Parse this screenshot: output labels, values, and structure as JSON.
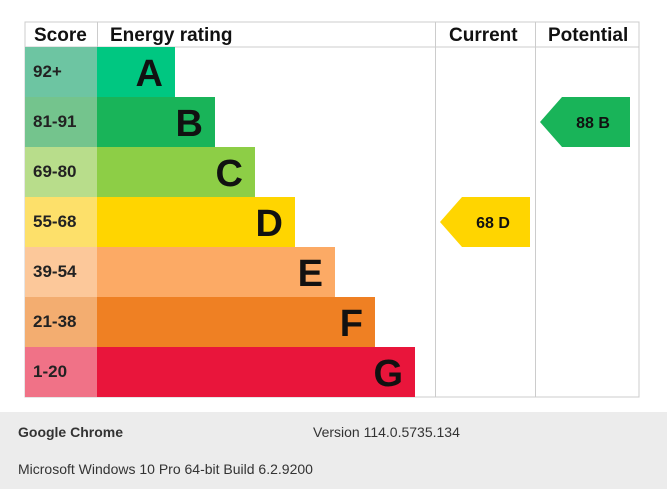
{
  "chart_data": {
    "type": "table",
    "headers": {
      "score": "Score",
      "energy_rating": "Energy rating",
      "current": "Current",
      "potential": "Potential"
    },
    "bands": [
      {
        "letter": "A",
        "range": "92+",
        "color": "#00c781",
        "score_bg": "#6dc5a2"
      },
      {
        "letter": "B",
        "range": "81-91",
        "color": "#19b459",
        "score_bg": "#74c48d"
      },
      {
        "letter": "C",
        "range": "69-80",
        "color": "#8dce46",
        "score_bg": "#b8dd8b"
      },
      {
        "letter": "D",
        "range": "55-68",
        "color": "#ffd500",
        "score_bg": "#fde06a"
      },
      {
        "letter": "E",
        "range": "39-54",
        "color": "#fcaa65",
        "score_bg": "#fcc89a"
      },
      {
        "letter": "F",
        "range": "21-38",
        "color": "#ef8023",
        "score_bg": "#f3ad70"
      },
      {
        "letter": "G",
        "range": "1-20",
        "color": "#e9153b",
        "score_bg": "#f07287"
      }
    ],
    "current": {
      "value": 68,
      "band": "D",
      "label": "68  D",
      "color": "#ffd500"
    },
    "potential": {
      "value": 88,
      "band": "B",
      "label": "88  B",
      "color": "#19b459"
    }
  },
  "footer": {
    "browser": "Google Chrome",
    "version": "Version 114.0.5735.134",
    "os": "Microsoft Windows 10 Pro 64-bit Build 6.2.9200"
  }
}
